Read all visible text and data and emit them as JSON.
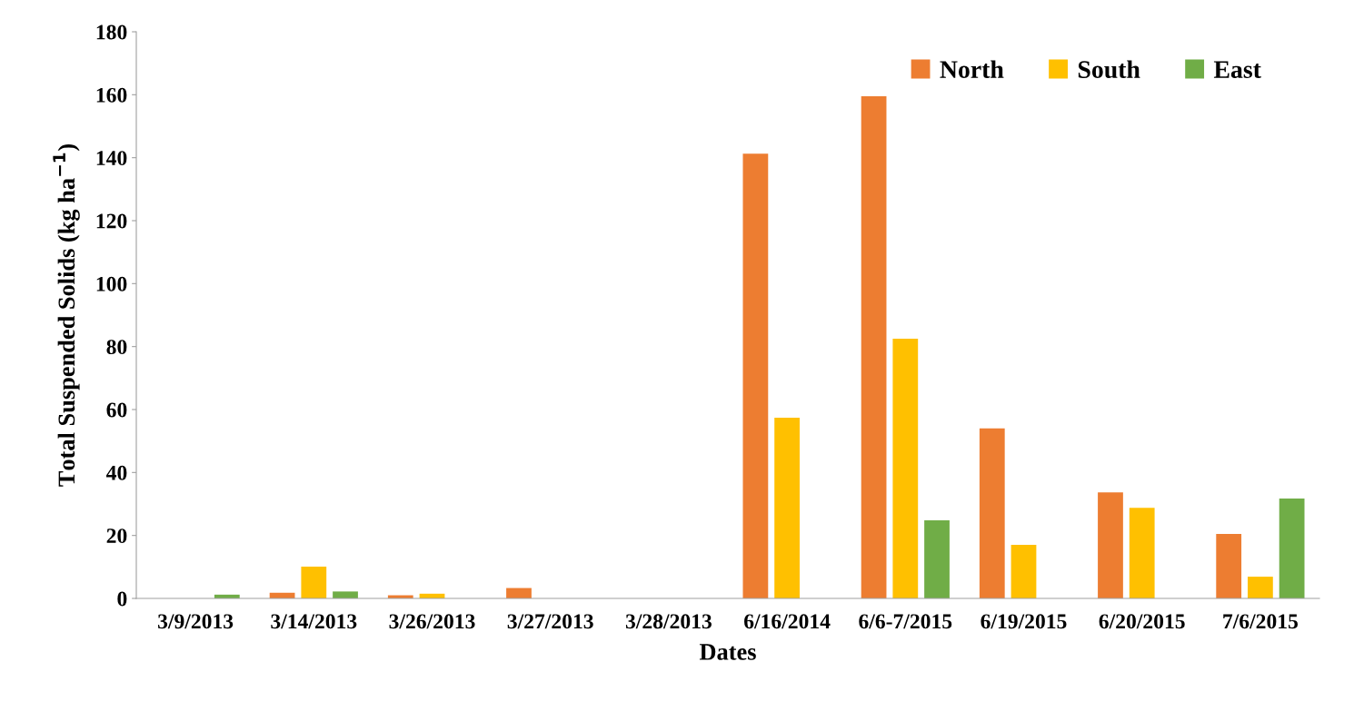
{
  "chart_data": {
    "type": "bar",
    "xlabel": "Dates",
    "ylabel": "Total Suspended Solids (kg ha$^{−1}$)",
    "categories": [
      "3/9/2013",
      "3/14/2013",
      "3/26/2013",
      "3/27/2013",
      "3/28/2013",
      "6/16/2014",
      "6/6-7/2015",
      "6/19/2015",
      "6/20/2015",
      "7/6/2015"
    ],
    "series": [
      {
        "name": "North",
        "color": "#ed7d31",
        "values": [
          null,
          1.8,
          1.0,
          3.3,
          0,
          141.3,
          159.5,
          54,
          33.7,
          20.5
        ]
      },
      {
        "name": "South",
        "color": "#ffc000",
        "values": [
          null,
          10.1,
          1.5,
          null,
          0,
          57.4,
          82.5,
          17,
          28.8,
          6.9
        ]
      },
      {
        "name": "East",
        "color": "#70ad47",
        "values": [
          1.2,
          2.2,
          0,
          null,
          0,
          0,
          24.8,
          0,
          0,
          31.7
        ]
      }
    ],
    "ylim": [
      0,
      180
    ],
    "yticks": [
      0,
      20,
      40,
      60,
      80,
      100,
      120,
      140,
      160,
      180
    ],
    "legend": "top right",
    "grid": false
  }
}
